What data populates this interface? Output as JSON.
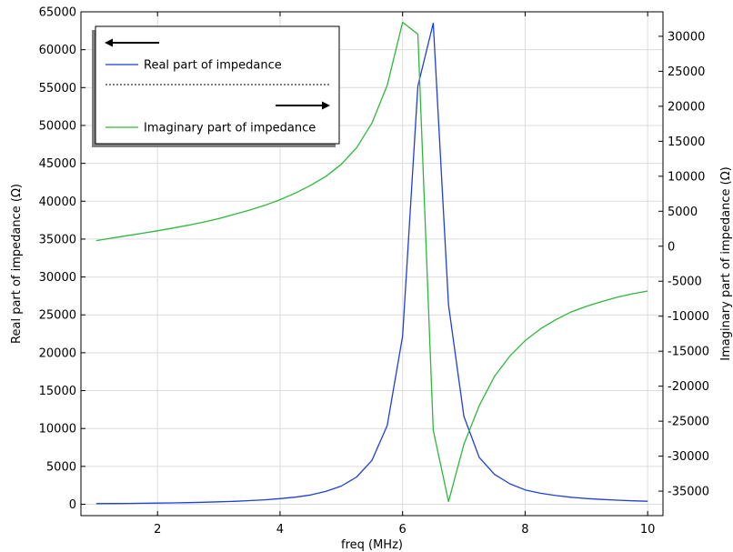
{
  "chart_data": {
    "type": "line",
    "xlabel": "freq (MHz)",
    "ylabel_left": "Real part of impedance (Ω)",
    "ylabel_right": "Imaginary part of impedance (Ω)",
    "xlim": [
      0.75,
      10.25
    ],
    "ylim_left": [
      -1500,
      65000
    ],
    "ylim_right": [
      -38500,
      33500
    ],
    "x_ticks": [
      2,
      4,
      6,
      8,
      10
    ],
    "y_left_ticks": [
      0,
      5000,
      10000,
      15000,
      20000,
      25000,
      30000,
      35000,
      40000,
      45000,
      50000,
      55000,
      60000,
      65000
    ],
    "y_right_ticks": [
      -35000,
      -30000,
      -25000,
      -20000,
      -15000,
      -10000,
      -5000,
      0,
      5000,
      10000,
      15000,
      20000,
      25000,
      30000
    ],
    "grid": true,
    "legend_position": "top-left",
    "series": [
      {
        "name": "Real part of impedance",
        "axis": "left",
        "color": "#1f3fd8",
        "x": [
          1,
          1.25,
          1.5,
          1.75,
          2,
          2.25,
          2.5,
          2.75,
          3,
          3.25,
          3.5,
          3.75,
          4,
          4.25,
          4.5,
          4.75,
          5,
          5.25,
          5.5,
          5.75,
          6,
          6.25,
          6.5,
          6.75,
          7,
          7.25,
          7.5,
          7.75,
          8,
          8.25,
          8.5,
          8.75,
          9,
          9.25,
          9.5,
          9.75,
          10
        ],
        "values": [
          80,
          95,
          110,
          130,
          155,
          185,
          220,
          265,
          320,
          390,
          480,
          590,
          740,
          940,
          1230,
          1700,
          2400,
          3600,
          5800,
          10400,
          22200,
          55200,
          63500,
          26300,
          11600,
          6200,
          3950,
          2700,
          1900,
          1450,
          1150,
          920,
          760,
          640,
          540,
          460,
          400
        ]
      },
      {
        "name": "Imaginary part of impedance",
        "axis": "right",
        "color": "#2db83d",
        "x": [
          1,
          1.25,
          1.5,
          1.75,
          2,
          2.25,
          2.5,
          2.75,
          3,
          3.25,
          3.5,
          3.75,
          4,
          4.25,
          4.5,
          4.75,
          5,
          5.25,
          5.5,
          5.75,
          6,
          6.25,
          6.5,
          6.75,
          7,
          7.25,
          7.5,
          7.75,
          8,
          8.25,
          8.5,
          8.75,
          9,
          9.25,
          9.5,
          9.75,
          10
        ],
        "values": [
          800,
          1150,
          1500,
          1850,
          2200,
          2600,
          3000,
          3450,
          3950,
          4550,
          5150,
          5850,
          6650,
          7600,
          8700,
          10000,
          11700,
          14100,
          17600,
          23000,
          32000,
          30300,
          -26300,
          -36500,
          -28300,
          -22800,
          -18600,
          -15700,
          -13500,
          -11800,
          -10500,
          -9400,
          -8600,
          -7900,
          -7300,
          -6800,
          -6400
        ]
      }
    ]
  }
}
